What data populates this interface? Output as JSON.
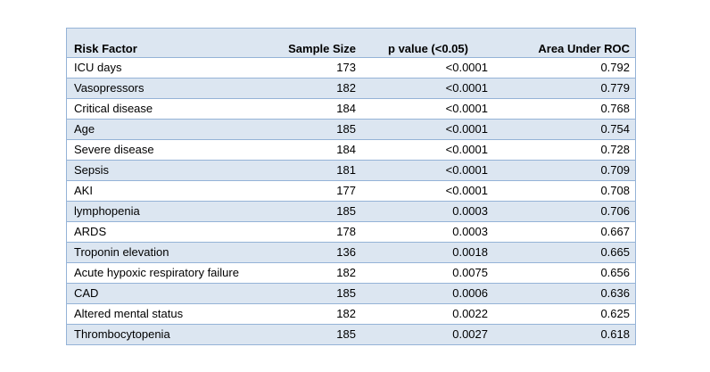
{
  "table": {
    "headers": [
      "Risk Factor",
      "Sample Size",
      "p value (<0.05)",
      "Area Under ROC"
    ],
    "rows": [
      [
        "ICU days",
        "173",
        "<0.0001",
        "0.792"
      ],
      [
        "Vasopressors",
        "182",
        "<0.0001",
        "0.779"
      ],
      [
        "Critical disease",
        "184",
        "<0.0001",
        "0.768"
      ],
      [
        "Age",
        "185",
        "<0.0001",
        "0.754"
      ],
      [
        "Severe disease",
        "184",
        "<0.0001",
        "0.728"
      ],
      [
        "Sepsis",
        "181",
        "<0.0001",
        "0.709"
      ],
      [
        "AKI",
        "177",
        "<0.0001",
        "0.708"
      ],
      [
        "lymphopenia",
        "185",
        "0.0003",
        "0.706"
      ],
      [
        "ARDS",
        "178",
        "0.0003",
        "0.667"
      ],
      [
        "Troponin elevation",
        "136",
        "0.0018",
        "0.665"
      ],
      [
        "Acute hypoxic respiratory failure",
        "182",
        "0.0075",
        "0.656"
      ],
      [
        "CAD",
        "185",
        "0.0006",
        "0.636"
      ],
      [
        "Altered mental status",
        "182",
        "0.0022",
        "0.625"
      ],
      [
        "Thrombocytopenia",
        "185",
        "0.0027",
        "0.618"
      ]
    ]
  },
  "colors": {
    "band": "#dce6f1",
    "border": "#95b3d7"
  }
}
